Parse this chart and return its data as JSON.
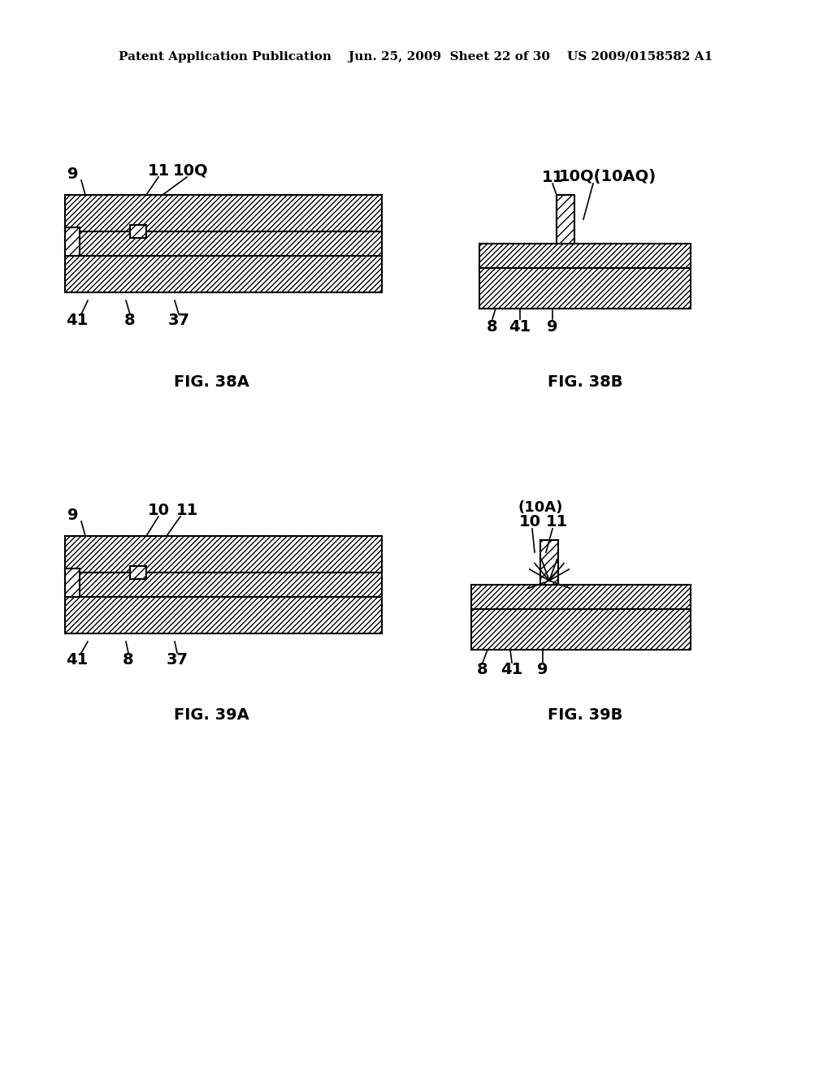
{
  "header_text": "Patent Application Publication    Jun. 25, 2009  Sheet 22 of 30    US 2009/0158582 A1",
  "fig38a_label": "FIG. 38A",
  "fig38b_label": "FIG. 38B",
  "fig39a_label": "FIG. 39A",
  "fig39b_label": "FIG. 39B",
  "background_color": "#ffffff",
  "line_color": "#000000",
  "hatch_color": "#000000"
}
